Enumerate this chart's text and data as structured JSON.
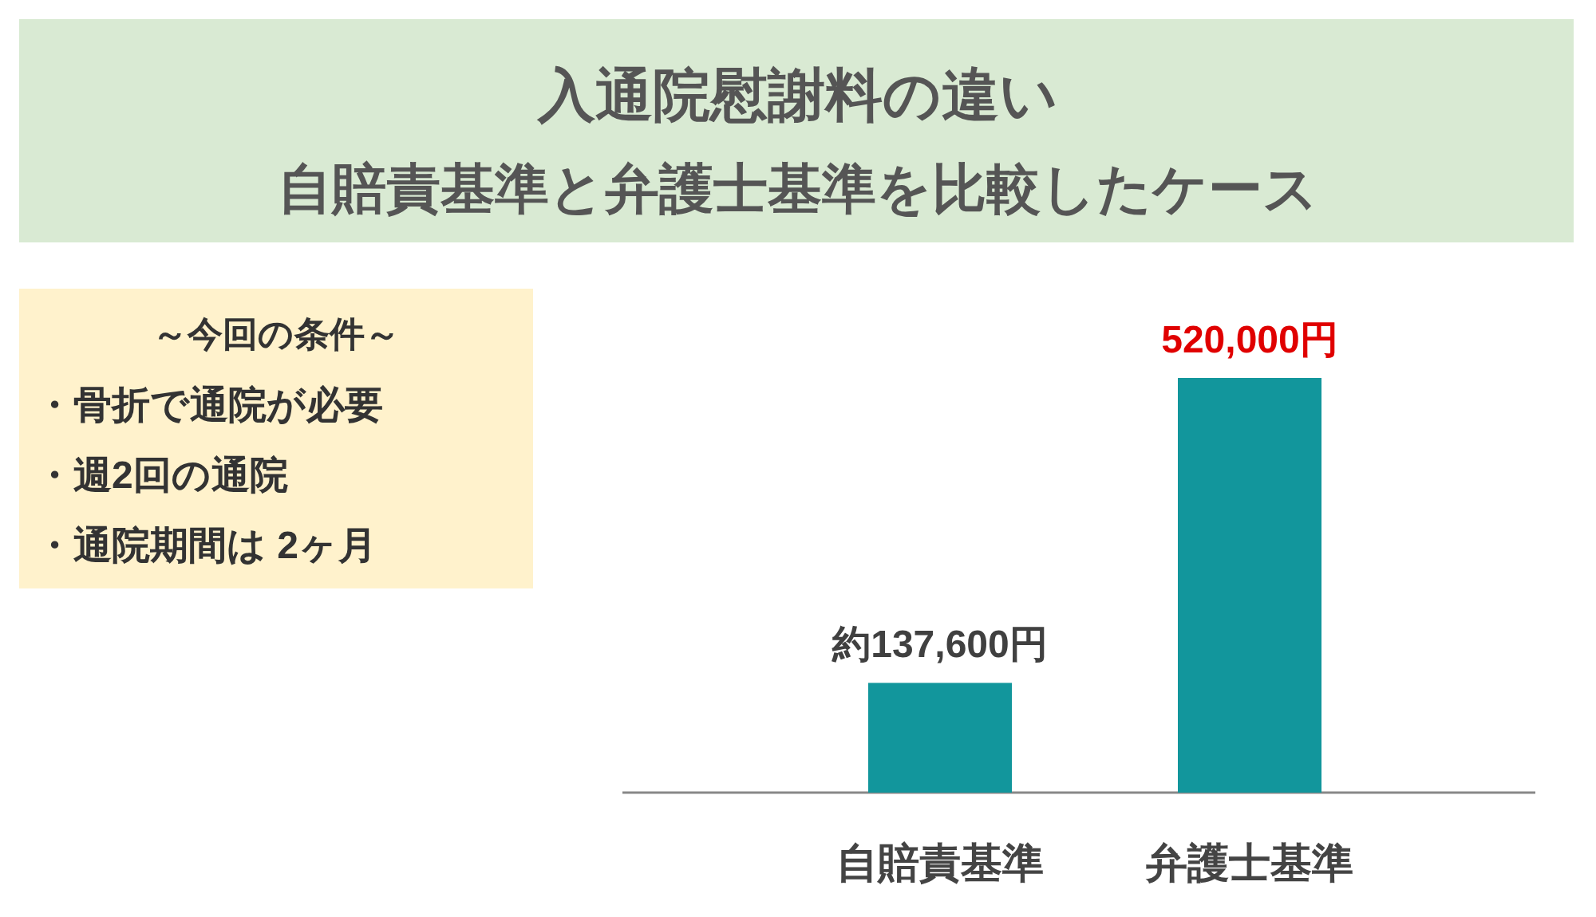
{
  "chart_data": [
    {
      "type": "other",
      "title": "～今回の条件～",
      "annotations": [
        "・骨折で通院が必要",
        "・週2回の通院",
        "・通院期間は 2ヶ月"
      ]
    },
    {
      "type": "bar",
      "title": "入通院慰謝料の違い",
      "subtitle": "自賠責基準と弁護士基準を比較したケース",
      "categories": [
        "自賠責基準",
        "弁護士基準"
      ],
      "values": [
        137600,
        520000
      ],
      "color": "#12969c",
      "value_labels": [
        "約137,600円",
        "520,000円"
      ]
    }
  ]
}
